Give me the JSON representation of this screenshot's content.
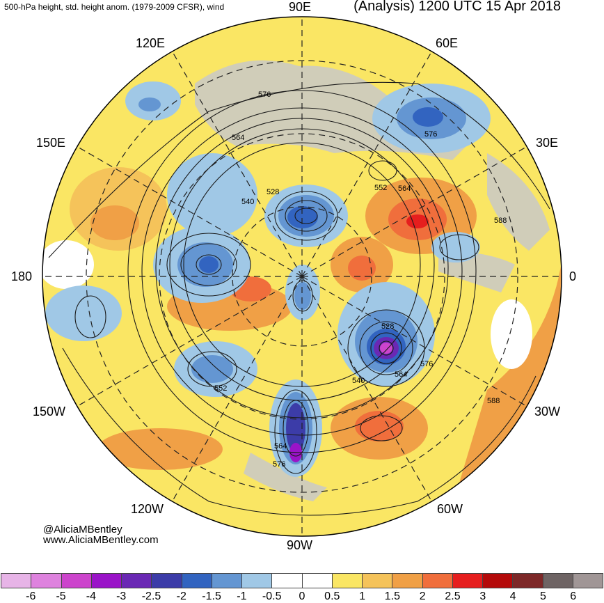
{
  "header": {
    "left_title": "500-hPa height, std. height anom. (1979-2009 CFSR), wind",
    "right_title": "(Analysis) 1200 UTC 15 Apr 2018"
  },
  "map": {
    "projection": "north-polar-stereographic",
    "longitude_labels": {
      "top": "90E",
      "top_left": "120E",
      "top_right": "60E",
      "upper_left": "150E",
      "upper_right": "30E",
      "left": "180",
      "right": "0",
      "lower_left": "150W",
      "lower_right": "30W",
      "bottom_left": "120W",
      "bottom_right": "60W",
      "bottom": "90W"
    },
    "contour_labels": [
      "576",
      "564",
      "576",
      "552",
      "564",
      "528",
      "540",
      "588",
      "528",
      "576",
      "564",
      "540",
      "552",
      "564",
      "576",
      "588"
    ],
    "colors": {
      "land_gray": "#c8c8c8",
      "ocean": "#ffffff",
      "contour": "#1a1a1a"
    }
  },
  "credits": {
    "handle": "@AliciaMBentley",
    "site": "www.AliciaMBentley.com"
  },
  "colorbar": {
    "colors": [
      "#e7b4e7",
      "#de82de",
      "#cc44cc",
      "#9a14c8",
      "#6a28b4",
      "#3c3ca8",
      "#3264c0",
      "#6496d2",
      "#a0c8e6",
      "#ffffff",
      "#ffffff",
      "#fae664",
      "#f5c35a",
      "#f0a046",
      "#f06e3c",
      "#e61e1e",
      "#b40a0a",
      "#7d2828",
      "#6e6464",
      "#a09696"
    ],
    "tick_labels": [
      "-6",
      "-5",
      "-4",
      "-3",
      "-2.5",
      "-2",
      "-1.5",
      "-1",
      "-0.5",
      "0",
      "0.5",
      "1",
      "1.5",
      "2",
      "2.5",
      "3",
      "4",
      "5",
      "6"
    ]
  }
}
